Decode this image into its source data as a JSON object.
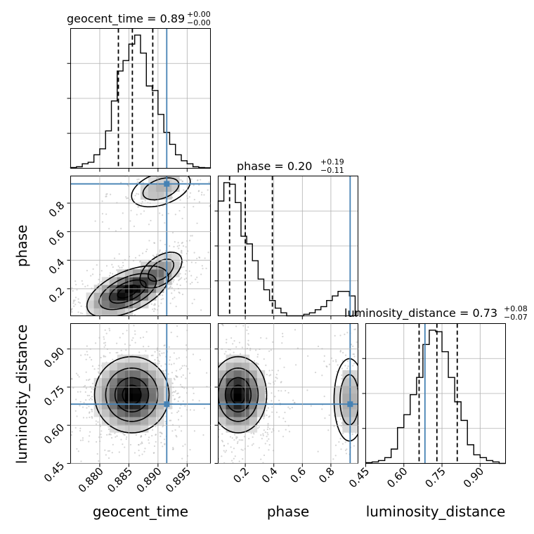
{
  "chart_data": {
    "type": "corner",
    "parameters": [
      "geocent_time",
      "phase",
      "luminosity_distance"
    ],
    "truths": {
      "geocent_time": 0.8915,
      "phase": 0.935,
      "luminosity_distance": 0.683
    },
    "titles": {
      "geocent_time": {
        "prefix": "geocent_time = 0.89",
        "plus": "+0.00",
        "minus": "−0.00"
      },
      "phase": {
        "prefix": "phase = 0.20",
        "plus": "+0.19",
        "minus": "−0.11"
      },
      "luminosity_distance": {
        "prefix": "luminosity_distance = 0.73",
        "plus": "+0.08",
        "minus": "−0.07"
      }
    },
    "axis_labels": {
      "geocent_time": "geocent_time",
      "phase": "phase",
      "luminosity_distance": "luminosity_distance"
    },
    "ranges": {
      "geocent_time": [
        0.875,
        0.899
      ],
      "phase": [
        0.01,
        0.99
      ],
      "luminosity_distance": [
        0.45,
        1.0
      ]
    },
    "ticks": {
      "geocent_time": {
        "values": [
          0.88,
          0.885,
          0.89,
          0.895
        ],
        "labels": [
          "0.880",
          "0.885",
          "0.890",
          "0.895"
        ]
      },
      "phase": {
        "values": [
          0.2,
          0.4,
          0.6,
          0.8
        ],
        "labels": [
          "0.2",
          "0.4",
          "0.6",
          "0.8"
        ]
      },
      "luminosity_distance": {
        "values": [
          0.45,
          0.6,
          0.75,
          0.9
        ],
        "labels": [
          "0.45",
          "0.60",
          "0.75",
          "0.90"
        ]
      }
    },
    "quantile_lines": {
      "geocent_time": [
        0.8832,
        0.8856,
        0.8891
      ],
      "phase": [
        0.09,
        0.2,
        0.39
      ],
      "luminosity_distance": [
        0.66,
        0.73,
        0.81
      ]
    },
    "histograms": {
      "geocent_time": {
        "edges": [
          0.875,
          0.876,
          0.877,
          0.878,
          0.879,
          0.88,
          0.881,
          0.882,
          0.883,
          0.884,
          0.885,
          0.886,
          0.887,
          0.888,
          0.889,
          0.89,
          0.891,
          0.892,
          0.893,
          0.894,
          0.895,
          0.896,
          0.897,
          0.898,
          0.899
        ],
        "counts": [
          0.005,
          0.01,
          0.03,
          0.04,
          0.09,
          0.13,
          0.25,
          0.45,
          0.65,
          0.72,
          0.83,
          0.89,
          0.77,
          0.55,
          0.52,
          0.36,
          0.24,
          0.16,
          0.09,
          0.05,
          0.03,
          0.01,
          0.005,
          0.003
        ]
      },
      "phase": {
        "edges": [
          0.01,
          0.05,
          0.09,
          0.13,
          0.17,
          0.21,
          0.25,
          0.29,
          0.33,
          0.37,
          0.41,
          0.45,
          0.49,
          0.53,
          0.57,
          0.61,
          0.65,
          0.69,
          0.73,
          0.77,
          0.81,
          0.85,
          0.89,
          0.93,
          0.97
        ],
        "counts": [
          0.75,
          0.87,
          0.86,
          0.74,
          0.52,
          0.47,
          0.36,
          0.24,
          0.17,
          0.1,
          0.05,
          0.02,
          0.0,
          0.0,
          0.0,
          0.01,
          0.02,
          0.04,
          0.06,
          0.1,
          0.13,
          0.16,
          0.16,
          0.13
        ]
      },
      "luminosity_distance": {
        "edges": [
          0.45,
          0.475,
          0.5,
          0.525,
          0.55,
          0.575,
          0.6,
          0.625,
          0.65,
          0.675,
          0.7,
          0.725,
          0.75,
          0.775,
          0.8,
          0.825,
          0.85,
          0.875,
          0.9,
          0.925,
          0.95,
          0.975,
          1.0
        ],
        "counts": [
          0.005,
          0.01,
          0.02,
          0.04,
          0.1,
          0.25,
          0.34,
          0.48,
          0.6,
          0.83,
          0.93,
          0.92,
          0.78,
          0.6,
          0.43,
          0.3,
          0.13,
          0.06,
          0.04,
          0.02,
          0.01,
          0.0
        ]
      }
    },
    "joint_densities": [
      {
        "x": "geocent_time",
        "y": "phase",
        "modes": [
          {
            "x": 0.8848,
            "y": 0.18,
            "sx": 0.0035,
            "sy": 0.09,
            "rho": 0.55,
            "w": 1.0
          },
          {
            "x": 0.8905,
            "y": 0.33,
            "sx": 0.002,
            "sy": 0.07,
            "rho": 0.5,
            "w": 0.35
          },
          {
            "x": 0.8905,
            "y": 0.9,
            "sx": 0.0028,
            "sy": 0.07,
            "rho": 0.4,
            "w": 0.3
          }
        ]
      },
      {
        "x": "geocent_time",
        "y": "luminosity_distance",
        "modes": [
          {
            "x": 0.8855,
            "y": 0.72,
            "sx": 0.0032,
            "sy": 0.075,
            "rho": 0.0,
            "w": 1.0
          }
        ]
      },
      {
        "x": "phase",
        "y": "luminosity_distance",
        "modes": [
          {
            "x": 0.15,
            "y": 0.72,
            "sx": 0.1,
            "sy": 0.075,
            "rho": 0.0,
            "w": 1.0
          },
          {
            "x": 0.93,
            "y": 0.7,
            "sx": 0.06,
            "sy": 0.09,
            "rho": 0.0,
            "w": 0.35
          }
        ]
      }
    ],
    "grid": true,
    "colors": {
      "truth": "#4682b4",
      "hist": "#000000",
      "scatter": "#b3b3b3",
      "grid": "#b0b0b0"
    }
  }
}
